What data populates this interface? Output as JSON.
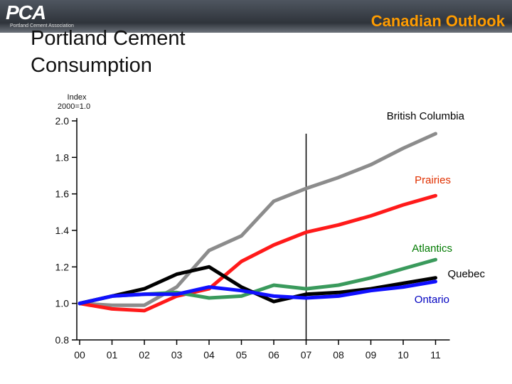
{
  "header": {
    "logo_text": "PCA",
    "logo_subtext": "Portland Cement Association",
    "section_title": "Canadian Outlook"
  },
  "page": {
    "title": "Portland Cement Consumption"
  },
  "colors": {
    "header_band": "#3a3f46",
    "section_title": "#ff9c00",
    "divider": "#000000"
  },
  "chart_data": {
    "type": "line",
    "title": "Portland Cement Consumption",
    "ylabel": "Index 2000=1.0",
    "xlabel": "",
    "categories": [
      "00",
      "01",
      "02",
      "03",
      "04",
      "05",
      "06",
      "07",
      "08",
      "09",
      "10",
      "11"
    ],
    "ylim": [
      0.8,
      2.0
    ],
    "yticks": [
      2.0,
      1.8,
      1.6,
      1.4,
      1.2,
      1.0,
      0.8
    ],
    "ytick_labels": [
      "2.0",
      "1.8",
      "1.6",
      "1.4",
      "1.2",
      "1.0",
      "0.8"
    ],
    "divider_at": "07",
    "grid": false,
    "series": [
      {
        "name": "British Columbia",
        "color": "#8c8c8c",
        "label_color": "#000000",
        "values": [
          1.0,
          0.99,
          0.99,
          1.09,
          1.29,
          1.37,
          1.56,
          1.63,
          1.69,
          1.76,
          1.85,
          1.93
        ]
      },
      {
        "name": "Prairies",
        "color": "#ff1a1a",
        "label_color": "#e03000",
        "values": [
          1.0,
          0.97,
          0.96,
          1.04,
          1.08,
          1.23,
          1.32,
          1.39,
          1.43,
          1.48,
          1.54,
          1.59
        ]
      },
      {
        "name": "Atlantics",
        "color": "#3a9a5c",
        "label_color": "#007a00",
        "values": [
          1.0,
          1.04,
          1.05,
          1.06,
          1.03,
          1.04,
          1.1,
          1.08,
          1.1,
          1.14,
          1.19,
          1.24
        ]
      },
      {
        "name": "Quebec",
        "color": "#000000",
        "label_color": "#000000",
        "values": [
          1.0,
          1.04,
          1.08,
          1.16,
          1.2,
          1.09,
          1.01,
          1.05,
          1.06,
          1.08,
          1.11,
          1.14
        ]
      },
      {
        "name": "Ontario",
        "color": "#1010ff",
        "label_color": "#0000c0",
        "values": [
          1.0,
          1.04,
          1.05,
          1.05,
          1.09,
          1.07,
          1.04,
          1.03,
          1.04,
          1.07,
          1.09,
          1.12
        ]
      }
    ]
  }
}
